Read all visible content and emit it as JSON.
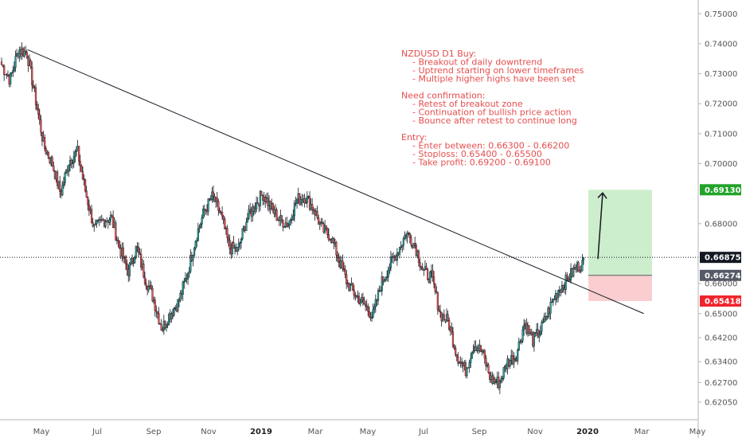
{
  "chart_data": {
    "type": "candlestick",
    "title": "",
    "y_axis": {
      "min": 0.617,
      "max": 0.753,
      "ticks": [
        "0.75000",
        "0.74000",
        "0.73000",
        "0.72000",
        "0.71000",
        "0.70000",
        "0.69130",
        "0.68000",
        "0.66875",
        "0.66274",
        "0.66000",
        "0.65418",
        "0.65000",
        "0.64200",
        "0.63400",
        "0.62700",
        "0.62050"
      ],
      "regular_ticks": [
        "0.75000",
        "0.74000",
        "0.73000",
        "0.72000",
        "0.71000",
        "0.70000",
        "0.68000",
        "0.66000",
        "0.65000",
        "0.64200",
        "0.63400",
        "0.62700",
        "0.62050"
      ]
    },
    "x_axis": {
      "labels": [
        {
          "text": "May",
          "bold": false
        },
        {
          "text": "Jul",
          "bold": false
        },
        {
          "text": "Sep",
          "bold": false
        },
        {
          "text": "Nov",
          "bold": false
        },
        {
          "text": "2019",
          "bold": true
        },
        {
          "text": "Mar",
          "bold": false
        },
        {
          "text": "May",
          "bold": false
        },
        {
          "text": "Jul",
          "bold": false
        },
        {
          "text": "Sep",
          "bold": false
        },
        {
          "text": "Nov",
          "bold": false
        },
        {
          "text": "2020",
          "bold": true
        },
        {
          "text": "Mar",
          "bold": false
        },
        {
          "text": "May",
          "bold": false
        }
      ]
    },
    "price_path": [
      0.733,
      0.728,
      0.738,
      0.737,
      0.722,
      0.706,
      0.7,
      0.69,
      0.701,
      0.704,
      0.69,
      0.678,
      0.681,
      0.682,
      0.672,
      0.664,
      0.672,
      0.662,
      0.655,
      0.645,
      0.65,
      0.654,
      0.663,
      0.675,
      0.684,
      0.689,
      0.683,
      0.672,
      0.671,
      0.681,
      0.686,
      0.69,
      0.685,
      0.681,
      0.68,
      0.688,
      0.689,
      0.685,
      0.678,
      0.676,
      0.668,
      0.66,
      0.656,
      0.653,
      0.649,
      0.66,
      0.666,
      0.671,
      0.677,
      0.673,
      0.664,
      0.662,
      0.65,
      0.647,
      0.636,
      0.631,
      0.64,
      0.637,
      0.628,
      0.627,
      0.634,
      0.636,
      0.647,
      0.641,
      0.645,
      0.652,
      0.658,
      0.661,
      0.665,
      0.667
    ],
    "trendline": {
      "from": [
        "2018-04-20",
        0.738
      ],
      "to": [
        "2020-03-10",
        0.65
      ]
    },
    "current_price": {
      "label": "0.66875",
      "value": 0.66875,
      "color": "#131722"
    },
    "price_tags": [
      {
        "label": "0.69130",
        "value": 0.6913,
        "color": "#22a32a"
      },
      {
        "label": "0.66274",
        "value": 0.66274,
        "color": "#555a66"
      },
      {
        "label": "0.65418",
        "value": 0.65418,
        "color": "#f0242c"
      }
    ],
    "position": {
      "entry": 0.66274,
      "target": 0.6913,
      "stop": 0.65418,
      "profit_color": "#c8ecc6",
      "loss_color": "#f9c9cb"
    },
    "annotation_lines": [
      "NZDUSD D1 Buy:",
      "    - Breakout of daily downtrend",
      "    - Uptrend starting on lower timeframes",
      "    - Multiple higher highs have been set",
      "",
      "Need confirmation:",
      "    - Retest of breakout zone",
      "    - Continuation of bullish price action",
      "    - Bounce after retest to continue long",
      "",
      "Entry:",
      "    - Enter between: 0.66300 - 0.66200",
      "    - Stoploss: 0.65400 - 0.65500",
      "    - Take profit: 0.69200 - 0.69100"
    ],
    "colors": {
      "up": "#26a69a",
      "down": "#ef5350",
      "candle_outline": "#131722",
      "note": "#e54e4e"
    }
  }
}
